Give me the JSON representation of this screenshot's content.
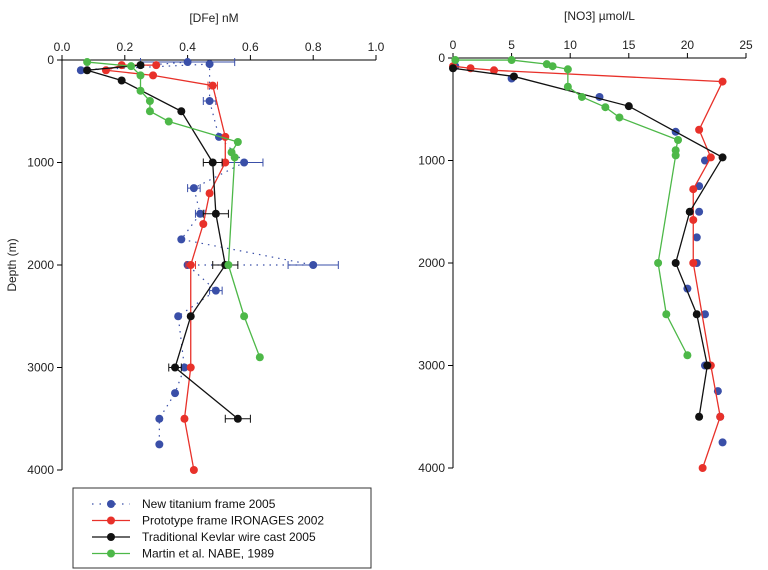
{
  "legend": [
    {
      "label": "New titanium frame 2005",
      "color": "#3a4fa8",
      "dotted": true
    },
    {
      "label": "Prototype frame IRONAGES 2002",
      "color": "#e8312a",
      "dotted": false
    },
    {
      "label": "Traditional Kevlar wire cast 2005",
      "color": "#111111",
      "dotted": false
    },
    {
      "label": "Martin et al. NABE, 1989",
      "color": "#4db848",
      "dotted": false
    }
  ],
  "chart_data": [
    {
      "type": "line",
      "title": "[DFe] nM",
      "xlabel": "[DFe] nM",
      "ylabel": "Depth (m)",
      "x_axis_position": "top",
      "y_inverted": true,
      "xlim": [
        0,
        1.0
      ],
      "ylim": [
        0,
        4000
      ],
      "x_ticks": [
        "0.0",
        "0.2",
        "0.4",
        "0.6",
        "0.8",
        "1.0"
      ],
      "x_tick_values": [
        0,
        0.2,
        0.4,
        0.6,
        0.8,
        1.0
      ],
      "y_ticks": [
        "0",
        "1000",
        "2000",
        "3000",
        "4000"
      ],
      "y_tick_values": [
        0,
        1000,
        2000,
        3000,
        4000
      ],
      "series": [
        {
          "name": "New titanium frame 2005",
          "color": "#3a4fa8",
          "line": "dotted",
          "points": [
            {
              "x": 0.4,
              "y": 20,
              "xerr": 0.15
            },
            {
              "x": 0.06,
              "y": 100
            },
            {
              "x": 0.47,
              "y": 40
            },
            {
              "x": 0.47,
              "y": 400,
              "xerr": 0.02
            },
            {
              "x": 0.5,
              "y": 750
            },
            {
              "x": 0.58,
              "y": 1000,
              "xerr": 0.06
            },
            {
              "x": 0.42,
              "y": 1250,
              "xerr": 0.02
            },
            {
              "x": 0.44,
              "y": 1500,
              "xerr": 0.015
            },
            {
              "x": 0.38,
              "y": 1750
            },
            {
              "x": 0.8,
              "y": 2000,
              "xerr": 0.08
            },
            {
              "x": 0.4,
              "y": 2000
            },
            {
              "x": 0.49,
              "y": 2250,
              "xerr": 0.02
            },
            {
              "x": 0.37,
              "y": 2500
            },
            {
              "x": 0.39,
              "y": 3000
            },
            {
              "x": 0.36,
              "y": 3250
            },
            {
              "x": 0.31,
              "y": 3500
            },
            {
              "x": 0.31,
              "y": 3750
            }
          ]
        },
        {
          "name": "Prototype frame IRONAGES 2002",
          "color": "#e8312a",
          "line": "solid",
          "points": [
            {
              "x": 0.3,
              "y": 50
            },
            {
              "x": 0.19,
              "y": 50
            },
            {
              "x": 0.14,
              "y": 100
            },
            {
              "x": 0.29,
              "y": 150
            },
            {
              "x": 0.48,
              "y": 250,
              "xerr": 0.015
            },
            {
              "x": 0.52,
              "y": 750
            },
            {
              "x": 0.52,
              "y": 1000
            },
            {
              "x": 0.47,
              "y": 1300
            },
            {
              "x": 0.45,
              "y": 1600
            },
            {
              "x": 0.41,
              "y": 2000,
              "xerr": 0.015
            },
            {
              "x": 0.41,
              "y": 3000
            },
            {
              "x": 0.39,
              "y": 3500
            },
            {
              "x": 0.42,
              "y": 4000
            }
          ]
        },
        {
          "name": "Traditional Kevlar wire cast 2005",
          "color": "#111111",
          "line": "solid",
          "points": [
            {
              "x": 0.25,
              "y": 50
            },
            {
              "x": 0.08,
              "y": 100
            },
            {
              "x": 0.19,
              "y": 200
            },
            {
              "x": 0.38,
              "y": 500
            },
            {
              "x": 0.48,
              "y": 1000,
              "xerr": 0.03
            },
            {
              "x": 0.49,
              "y": 1500,
              "xerr": 0.04
            },
            {
              "x": 0.52,
              "y": 2000,
              "xerr": 0.04
            },
            {
              "x": 0.41,
              "y": 2500
            },
            {
              "x": 0.36,
              "y": 3000,
              "xerr": 0.02
            },
            {
              "x": 0.56,
              "y": 3500,
              "xerr": 0.04
            }
          ]
        },
        {
          "name": "Martin et al. NABE, 1989",
          "color": "#4db848",
          "line": "solid",
          "points": [
            {
              "x": 0.08,
              "y": 20
            },
            {
              "x": 0.22,
              "y": 60
            },
            {
              "x": 0.25,
              "y": 150
            },
            {
              "x": 0.25,
              "y": 300
            },
            {
              "x": 0.28,
              "y": 400
            },
            {
              "x": 0.28,
              "y": 500
            },
            {
              "x": 0.34,
              "y": 600
            },
            {
              "x": 0.56,
              "y": 800
            },
            {
              "x": 0.54,
              "y": 900
            },
            {
              "x": 0.55,
              "y": 950
            },
            {
              "x": 0.53,
              "y": 2000
            },
            {
              "x": 0.58,
              "y": 2500
            },
            {
              "x": 0.63,
              "y": 2900
            }
          ]
        }
      ]
    },
    {
      "type": "line",
      "title": "[NO3] µmol/L",
      "xlabel": "[NO3] µmol/L",
      "ylabel": "",
      "x_axis_position": "top",
      "y_inverted": true,
      "xlim": [
        0,
        25
      ],
      "ylim": [
        0,
        4000
      ],
      "x_ticks": [
        "0",
        "5",
        "10",
        "15",
        "20",
        "25"
      ],
      "x_tick_values": [
        0,
        5,
        10,
        15,
        20,
        25
      ],
      "y_ticks": [
        "0",
        "1000",
        "2000",
        "3000",
        "4000"
      ],
      "y_tick_values": [
        0,
        1000,
        2000,
        3000,
        4000
      ],
      "series": [
        {
          "name": "New titanium frame 2005",
          "color": "#3a4fa8",
          "line": "none",
          "points": [
            {
              "x": 0.2,
              "y": 80
            },
            {
              "x": 5,
              "y": 200
            },
            {
              "x": 12.5,
              "y": 380
            },
            {
              "x": 19,
              "y": 720
            },
            {
              "x": 21.5,
              "y": 1000
            },
            {
              "x": 21,
              "y": 1250
            },
            {
              "x": 21,
              "y": 1500
            },
            {
              "x": 20.8,
              "y": 1750
            },
            {
              "x": 20.8,
              "y": 2000
            },
            {
              "x": 20,
              "y": 2250
            },
            {
              "x": 21.5,
              "y": 2500
            },
            {
              "x": 21.5,
              "y": 3000
            },
            {
              "x": 22.6,
              "y": 3250
            },
            {
              "x": 22.8,
              "y": 3500
            },
            {
              "x": 23,
              "y": 3750
            }
          ]
        },
        {
          "name": "Prototype frame IRONAGES 2002",
          "color": "#e8312a",
          "line": "solid",
          "points": [
            {
              "x": 0,
              "y": 80
            },
            {
              "x": 1.5,
              "y": 100
            },
            {
              "x": 3.5,
              "y": 120
            },
            {
              "x": 23,
              "y": 230
            },
            {
              "x": 21,
              "y": 700
            },
            {
              "x": 22,
              "y": 970
            },
            {
              "x": 20.5,
              "y": 1280
            },
            {
              "x": 20.5,
              "y": 1580
            },
            {
              "x": 20.5,
              "y": 2000
            },
            {
              "x": 22,
              "y": 3000
            },
            {
              "x": 22.8,
              "y": 3500
            },
            {
              "x": 21.3,
              "y": 4000
            }
          ]
        },
        {
          "name": "Traditional Kevlar wire cast 2005",
          "color": "#111111",
          "line": "solid",
          "points": [
            {
              "x": 0,
              "y": 100
            },
            {
              "x": 5.2,
              "y": 180
            },
            {
              "x": 15,
              "y": 470
            },
            {
              "x": 23,
              "y": 970
            },
            {
              "x": 20.2,
              "y": 1500
            },
            {
              "x": 19,
              "y": 2000
            },
            {
              "x": 20.8,
              "y": 2500
            },
            {
              "x": 21.7,
              "y": 3000
            },
            {
              "x": 21,
              "y": 3500
            }
          ]
        },
        {
          "name": "Martin et al. NABE, 1989",
          "color": "#4db848",
          "line": "solid",
          "points": [
            {
              "x": 0.2,
              "y": 20
            },
            {
              "x": 5,
              "y": 20
            },
            {
              "x": 8,
              "y": 60
            },
            {
              "x": 8.5,
              "y": 80
            },
            {
              "x": 9.8,
              "y": 110
            },
            {
              "x": 9.8,
              "y": 280
            },
            {
              "x": 11,
              "y": 380
            },
            {
              "x": 13,
              "y": 480
            },
            {
              "x": 14.2,
              "y": 580
            },
            {
              "x": 19.2,
              "y": 800
            },
            {
              "x": 19,
              "y": 900
            },
            {
              "x": 19,
              "y": 950
            },
            {
              "x": 17.5,
              "y": 2000
            },
            {
              "x": 18.2,
              "y": 2500
            },
            {
              "x": 20,
              "y": 2900
            }
          ]
        }
      ]
    }
  ]
}
